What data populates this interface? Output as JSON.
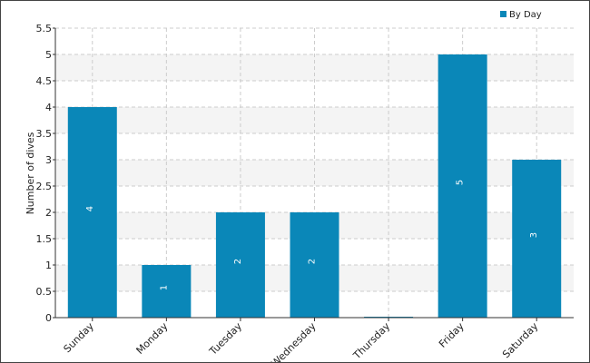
{
  "chart_data": {
    "type": "bar",
    "y_label": "Number of dives",
    "categories": [
      "Sunday",
      "Monday",
      "Tuesday",
      "Wednesday",
      "Thursday",
      "Friday",
      "Saturday"
    ],
    "series": [
      {
        "name": "By Day",
        "color": "#0a87b8",
        "values": [
          4,
          1,
          2,
          2,
          0,
          5,
          3
        ]
      }
    ],
    "ylim": [
      0,
      5.5
    ],
    "yticks": [
      0,
      0.5,
      1,
      1.5,
      2,
      2.5,
      3,
      3.5,
      4,
      4.5,
      5,
      5.5
    ],
    "grid": true,
    "legend": "top-right"
  }
}
